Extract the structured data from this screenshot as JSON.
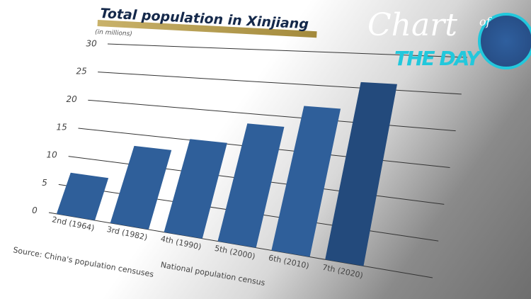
{
  "chart_data": {
    "type": "bar",
    "title": "Total population in Xinjiang",
    "unit_label": "(in millions)",
    "xlabel": "National population census",
    "source": "Source: China's population censuses",
    "categories": [
      "2nd (1964)",
      "3rd (1982)",
      "4th (1990)",
      "5th (2000)",
      "6th (2010)",
      "7th (2020)"
    ],
    "values": [
      7.27,
      13.08,
      15.16,
      18.46,
      21.81,
      25.85
    ],
    "ylim": [
      0,
      30
    ],
    "yticks": [
      "0",
      "5",
      "10",
      "15",
      "20",
      "25",
      "30"
    ],
    "grid": true,
    "bar_color": "#2f5f9a"
  },
  "logo": {
    "line1": "Chart",
    "of": "of",
    "line2": "THE DAY"
  }
}
